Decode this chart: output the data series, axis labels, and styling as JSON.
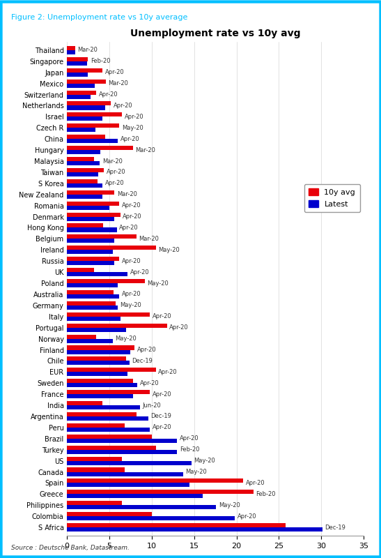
{
  "title": "Unemployment rate vs 10y avg",
  "figure_label": "Figure 2: Unemployment rate vs 10y average",
  "source": "Source : Deutsche Bank, Datastream.",
  "countries": [
    "Thailand",
    "Singapore",
    "Japan",
    "Mexico",
    "Switzerland",
    "Netherlands",
    "Israel",
    "Czech R",
    "China",
    "Hungary",
    "Malaysia",
    "Taiwan",
    "S Korea",
    "New Zealand",
    "Romania",
    "Denmark",
    "Hong Kong",
    "Belgium",
    "Ireland",
    "Russia",
    "UK",
    "Poland",
    "Australia",
    "Germany",
    "Italy",
    "Portugal",
    "Norway",
    "Finland",
    "Chile",
    "EUR",
    "Sweden",
    "France",
    "India",
    "Argentina",
    "Peru",
    "Brazil",
    "Turkey",
    "US",
    "Canada",
    "Spain",
    "Greece",
    "Philippines",
    "Colombia",
    "S Africa"
  ],
  "dates": [
    "Mar-20",
    "Feb-20",
    "Apr-20",
    "Mar-20",
    "Apr-20",
    "Apr-20",
    "Apr-20",
    "May-20",
    "Apr-20",
    "Mar-20",
    "Mar-20",
    "Apr-20",
    "Apr-20",
    "Mar-20",
    "Apr-20",
    "Apr-20",
    "Apr-20",
    "Mar-20",
    "May-20",
    "Apr-20",
    "Apr-20",
    "May-20",
    "Apr-20",
    "May-20",
    "Apr-20",
    "Apr-20",
    "May-20",
    "Apr-20",
    "Dec-19",
    "Apr-20",
    "Apr-20",
    "Apr-20",
    "Jun-20",
    "Dec-19",
    "Apr-20",
    "Apr-20",
    "Feb-20",
    "May-20",
    "May-20",
    "Apr-20",
    "Feb-20",
    "May-20",
    "Apr-20",
    "Dec-19"
  ],
  "ten_yr_avg": [
    1.0,
    2.5,
    4.2,
    4.6,
    3.5,
    5.2,
    6.5,
    6.2,
    4.5,
    7.8,
    3.2,
    4.4,
    3.6,
    5.6,
    6.2,
    6.3,
    4.3,
    8.2,
    10.5,
    6.2,
    3.2,
    9.2,
    5.5,
    5.8,
    9.8,
    11.8,
    3.5,
    8.0,
    7.0,
    10.5,
    7.8,
    9.8,
    4.2,
    8.2,
    6.8,
    10.0,
    10.5,
    6.5,
    6.8,
    20.8,
    22.0,
    6.5,
    10.0,
    25.8
  ],
  "latest": [
    1.0,
    2.4,
    2.5,
    3.3,
    2.8,
    4.5,
    4.2,
    3.4,
    6.0,
    4.0,
    3.9,
    3.7,
    4.2,
    4.2,
    5.0,
    5.6,
    5.9,
    5.6,
    5.4,
    5.6,
    7.2,
    6.0,
    6.2,
    6.0,
    6.3,
    7.0,
    5.4,
    7.5,
    7.4,
    7.2,
    8.3,
    7.8,
    8.6,
    9.6,
    9.8,
    13.0,
    13.0,
    14.7,
    13.7,
    14.5,
    16.0,
    17.6,
    19.8,
    30.1
  ],
  "color_red": "#E8000B",
  "color_blue": "#0000CD",
  "xlim": [
    0,
    35
  ],
  "xticks": [
    0,
    5,
    10,
    15,
    20,
    25,
    30,
    35
  ],
  "bar_height": 0.38,
  "figure_border_color": "#00BFFF"
}
